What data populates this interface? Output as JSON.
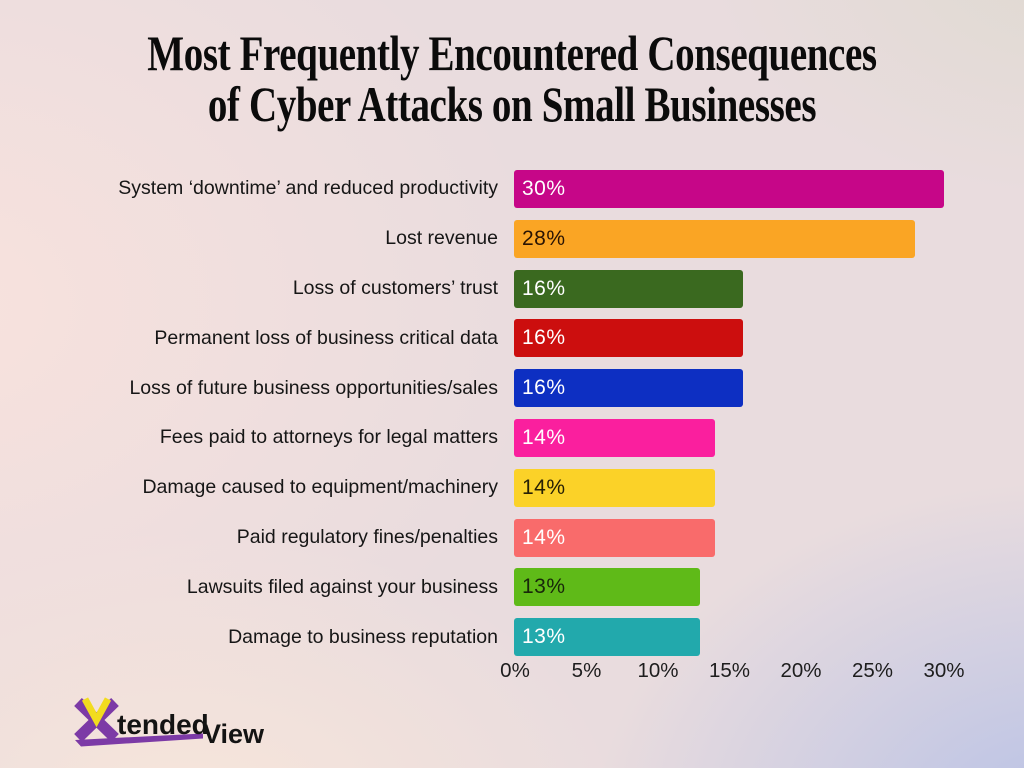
{
  "chart_data": {
    "type": "bar",
    "orientation": "horizontal",
    "title": "Most Frequently Encountered Consequences of Cyber Attacks on Small Businesses",
    "title_lines": [
      "Most Frequently Encountered Consequences",
      "of Cyber Attacks on Small Businesses"
    ],
    "categories": [
      "System ‘downtime’ and reduced productivity",
      "Lost revenue",
      "Loss of customers’ trust",
      "Permanent loss of business critical data",
      "Loss of future business opportunities/sales",
      "Fees paid to attorneys for legal matters",
      "Damage caused to equipment/machinery",
      "Paid regulatory fines/penalties",
      "Lawsuits filed against your business",
      "Damage to business reputation"
    ],
    "values": [
      30,
      28,
      16,
      16,
      16,
      14,
      14,
      14,
      13,
      13
    ],
    "value_labels": [
      "30%",
      "28%",
      "16%",
      "16%",
      "16%",
      "14%",
      "14%",
      "14%",
      "13%",
      "13%"
    ],
    "bar_colors": [
      "#C60688",
      "#FAA524",
      "#3A691F",
      "#CC0E0E",
      "#0D2FC2",
      "#FA1F9E",
      "#FBD228",
      "#F96B6B",
      "#5FBA18",
      "#22A9AC"
    ],
    "value_label_colors": [
      "#FFFFFF",
      "#2A1403",
      "#FFFFFF",
      "#FFFFFF",
      "#FFFFFF",
      "#FFFFFF",
      "#262005",
      "#FFFFFF",
      "#18270A",
      "#FFFFFF"
    ],
    "x_ticks": [
      "0%",
      "5%",
      "10%",
      "15%",
      "20%",
      "25%",
      "30%"
    ],
    "xlim": [
      0,
      30
    ],
    "grid": false,
    "legend": false
  },
  "logo": {
    "x_letter": "X",
    "word_part1": "tended",
    "word_part2": "View",
    "purple": "#7C3AA6",
    "yellow": "#F2DC1F",
    "text_color": "#131313"
  }
}
